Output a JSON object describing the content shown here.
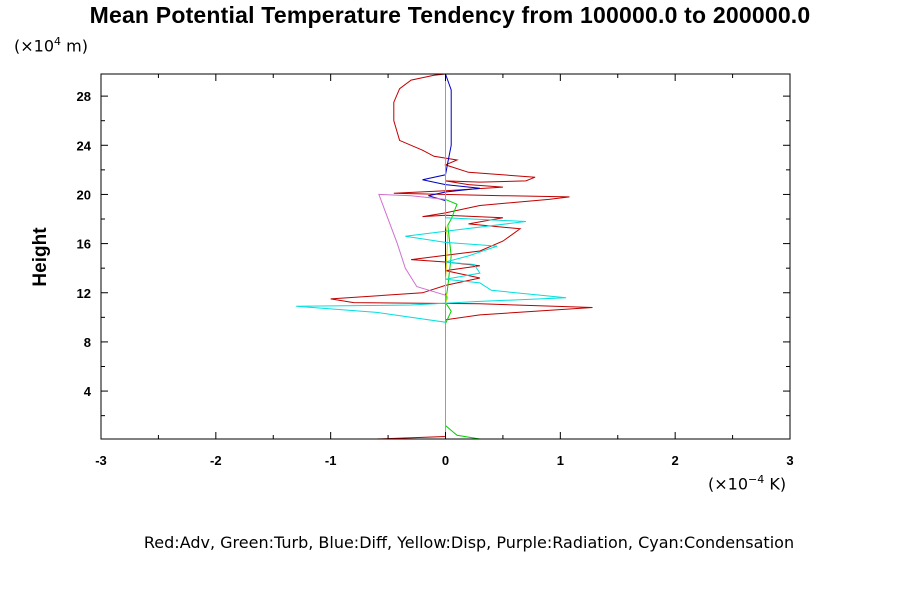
{
  "chart_data": {
    "type": "line",
    "title": "Mean Potential Temperature Tendency from 100000.0 to 200000.0",
    "ylabel": "Height",
    "yunits_prefix": "(×10",
    "yunits_exp": "4",
    "yunits_suffix": " m)",
    "xunits_prefix": "(×10",
    "xunits_exp": "−4",
    "xunits_suffix": " K)",
    "xlim": [
      -3,
      3
    ],
    "ylim": [
      0.1,
      29.8
    ],
    "xticks": [
      -3,
      -2,
      -1,
      0,
      1,
      2,
      3
    ],
    "xtick_labels": [
      "-3",
      "-2",
      "-1",
      "0",
      "1",
      "2",
      "3"
    ],
    "yticks": [
      4,
      8,
      12,
      16,
      20,
      24,
      28
    ],
    "ytick_labels": [
      "4",
      "8",
      "12",
      "16",
      "20",
      "24",
      "28"
    ],
    "grid": false,
    "legend_text": "Red:Adv, Green:Turb, Blue:Diff, Yellow:Disp, Purple:Radiation, Cyan:Condensation",
    "series": [
      {
        "name": "Adv",
        "color": "#c00000",
        "points": [
          [
            -0.6,
            0.1
          ],
          [
            0.0,
            0.3
          ],
          [
            0.0,
            1
          ],
          [
            0.0,
            9.8
          ],
          [
            0.3,
            10.2
          ],
          [
            1.28,
            10.8
          ],
          [
            0.3,
            11.1
          ],
          [
            -0.8,
            11.2
          ],
          [
            -1.0,
            11.5
          ],
          [
            -0.2,
            12.0
          ],
          [
            0.0,
            12.6
          ],
          [
            0.3,
            13.2
          ],
          [
            0.0,
            13.8
          ],
          [
            0.3,
            14.2
          ],
          [
            0.0,
            14.5
          ],
          [
            -0.3,
            14.7
          ],
          [
            0.3,
            15.4
          ],
          [
            0.5,
            16.2
          ],
          [
            0.65,
            17.2
          ],
          [
            0.2,
            17.6
          ],
          [
            0.5,
            18.1
          ],
          [
            0.0,
            18.3
          ],
          [
            -0.2,
            18.2
          ],
          [
            0.0,
            18.5
          ],
          [
            0.3,
            19.1
          ],
          [
            0.9,
            19.6
          ],
          [
            1.08,
            19.8
          ],
          [
            0.5,
            19.9
          ],
          [
            -0.45,
            20.1
          ],
          [
            0.0,
            20.3
          ],
          [
            0.5,
            20.6
          ],
          [
            0.2,
            20.8
          ],
          [
            0.0,
            21.1
          ],
          [
            0.3,
            21.0
          ],
          [
            0.7,
            21.1
          ],
          [
            0.78,
            21.4
          ],
          [
            0.2,
            21.8
          ],
          [
            0.0,
            22.4
          ],
          [
            0.1,
            22.8
          ],
          [
            -0.1,
            23.1
          ],
          [
            -0.2,
            23.6
          ],
          [
            -0.4,
            24.4
          ],
          [
            -0.45,
            26.0
          ],
          [
            -0.45,
            27.5
          ],
          [
            -0.4,
            28.6
          ],
          [
            -0.3,
            29.3
          ],
          [
            -0.1,
            29.7
          ],
          [
            0.0,
            29.8
          ]
        ]
      },
      {
        "name": "Turb",
        "color": "#00d000",
        "points": [
          [
            0.3,
            0.1
          ],
          [
            0.1,
            0.4
          ],
          [
            0.05,
            0.8
          ],
          [
            0.0,
            1.2
          ],
          [
            0.0,
            9.5
          ],
          [
            0.05,
            10.5
          ],
          [
            0.0,
            11.2
          ],
          [
            0.02,
            12.5
          ],
          [
            0.05,
            15.0
          ],
          [
            0.02,
            17.5
          ],
          [
            0.05,
            18.0
          ],
          [
            0.1,
            19.2
          ],
          [
            0.0,
            19.6
          ],
          [
            0.0,
            29.8
          ]
        ]
      },
      {
        "name": "Diff",
        "color": "#0000c0",
        "points": [
          [
            0.0,
            0.1
          ],
          [
            0.0,
            19.5
          ],
          [
            -0.15,
            19.9
          ],
          [
            0.0,
            20.2
          ],
          [
            0.3,
            20.5
          ],
          [
            0.0,
            20.8
          ],
          [
            -0.2,
            21.2
          ],
          [
            0.0,
            21.6
          ],
          [
            0.02,
            22.6
          ],
          [
            0.05,
            24.0
          ],
          [
            0.05,
            28.5
          ],
          [
            0.0,
            29.8
          ]
        ]
      },
      {
        "name": "Disp",
        "color": "#e0d000",
        "points": [
          [
            0.0,
            0.1
          ],
          [
            0.0,
            11.2
          ],
          [
            0.02,
            11.6
          ],
          [
            0.0,
            12.0
          ],
          [
            0.0,
            13.0
          ],
          [
            0.02,
            16.5
          ],
          [
            0.0,
            17.5
          ],
          [
            0.0,
            29.8
          ]
        ]
      },
      {
        "name": "Radiation",
        "color": "#d070d0",
        "points": [
          [
            0.0,
            0.1
          ],
          [
            0.0,
            11.8
          ],
          [
            -0.25,
            12.5
          ],
          [
            -0.35,
            14.0
          ],
          [
            -0.42,
            16.0
          ],
          [
            -0.52,
            18.5
          ],
          [
            -0.58,
            20.0
          ],
          [
            -0.3,
            19.9
          ],
          [
            0.0,
            19.6
          ],
          [
            0.0,
            29.8
          ]
        ]
      },
      {
        "name": "Condensation",
        "color": "#00e0e0",
        "points": [
          [
            0.0,
            0.1
          ],
          [
            0.0,
            9.6
          ],
          [
            -0.6,
            10.4
          ],
          [
            -1.3,
            10.9
          ],
          [
            -0.3,
            11.0
          ],
          [
            0.3,
            11.3
          ],
          [
            1.05,
            11.6
          ],
          [
            0.4,
            12.2
          ],
          [
            0.3,
            12.8
          ],
          [
            0.0,
            13.1
          ],
          [
            0.3,
            13.6
          ],
          [
            0.25,
            14.3
          ],
          [
            0.0,
            14.5
          ],
          [
            0.2,
            15.0
          ],
          [
            0.45,
            15.8
          ],
          [
            0.0,
            16.1
          ],
          [
            -0.35,
            16.6
          ],
          [
            0.0,
            17.0
          ],
          [
            0.7,
            17.8
          ],
          [
            0.0,
            18.1
          ],
          [
            0.0,
            29.8
          ]
        ]
      }
    ]
  }
}
